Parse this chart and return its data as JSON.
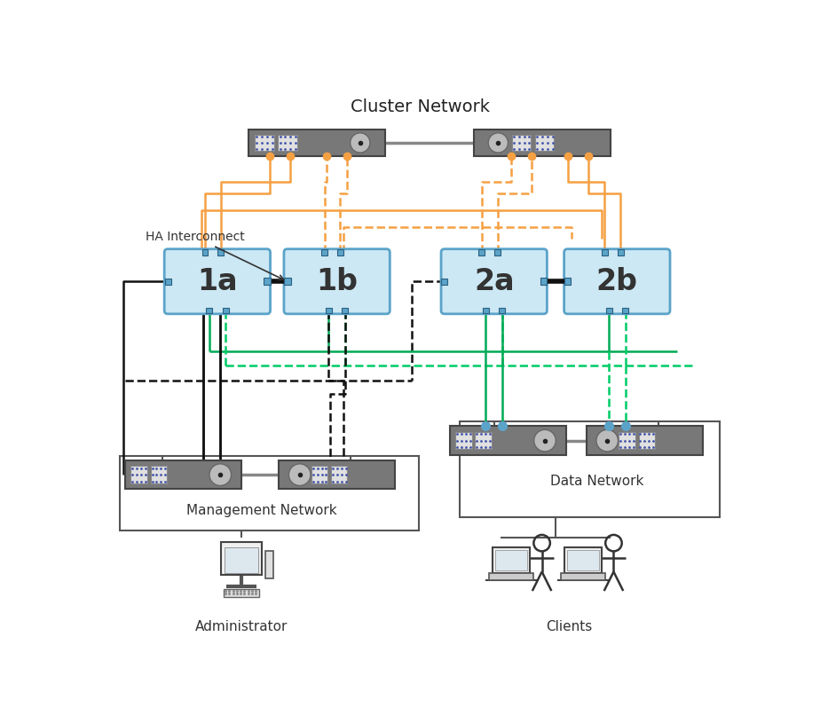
{
  "title": "Cluster Network",
  "node_labels": [
    "1a",
    "1b",
    "2a",
    "2b"
  ],
  "node_color": "#cce8f4",
  "node_edge_color": "#5ba3c9",
  "ha_interconnect_label": "HA Interconnect",
  "switch_color": "#787878",
  "switch_light_color": "#e0e0e0",
  "port_color": "#5ba3c9",
  "orange_color": "#f5a042",
  "green_solid_color": "#00aa55",
  "green_dash_color": "#00cc66",
  "black_color": "#111111",
  "gray_line_color": "#888888",
  "background_color": "#ffffff",
  "mgmt_network_label": "Management Network",
  "data_network_label": "Data Network",
  "admin_label": "Administrator",
  "clients_label": "Clients"
}
